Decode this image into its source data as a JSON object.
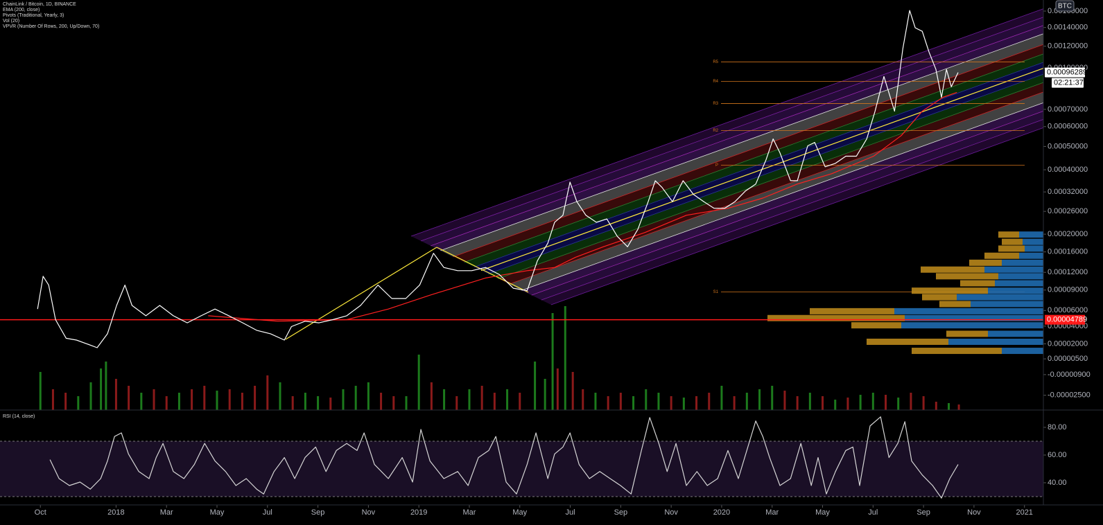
{
  "chart_data": [
    {
      "type": "line",
      "currency": "BTC",
      "xlim": [
        -1.6,
        39.75
      ],
      "xticks": [
        {
          "value": 0,
          "label": "Oct"
        },
        {
          "value": 3,
          "label": "2018"
        },
        {
          "value": 5,
          "label": "Mar"
        },
        {
          "value": 7,
          "label": "May"
        },
        {
          "value": 9,
          "label": "Jul"
        },
        {
          "value": 11,
          "label": "Sep"
        },
        {
          "value": 13,
          "label": "Nov"
        },
        {
          "value": 15,
          "label": "2019"
        },
        {
          "value": 17,
          "label": "Mar"
        },
        {
          "value": 19,
          "label": "May"
        },
        {
          "value": 21,
          "label": "Jul"
        },
        {
          "value": 23,
          "label": "Sep"
        },
        {
          "value": 25,
          "label": "Nov"
        },
        {
          "value": 27,
          "label": "2020"
        },
        {
          "value": 29,
          "label": "Mar"
        },
        {
          "value": 31,
          "label": "May"
        },
        {
          "value": 33,
          "label": "Jul"
        },
        {
          "value": 35,
          "label": "Sep"
        },
        {
          "value": 37,
          "label": "Nov"
        },
        {
          "value": 39,
          "label": "2021"
        }
      ],
      "ylim": [
        -3.5e-05,
        0.00175
      ],
      "yticks": [
        {
          "value": 0.0016,
          "label": "0.00160000"
        },
        {
          "value": 0.0014,
          "label": "0.00140000"
        },
        {
          "value": 0.0012,
          "label": "0.00120000"
        },
        {
          "value": 0.001,
          "label": "0.00100000"
        },
        {
          "value": 0.0007,
          "label": "0.00070000"
        },
        {
          "value": 0.0006,
          "label": "0.00060000"
        },
        {
          "value": 0.0005,
          "label": "0.00050000"
        },
        {
          "value": 0.0004,
          "label": "0.00040000"
        },
        {
          "value": 0.00032,
          "label": "0.00032000"
        },
        {
          "value": 0.00026,
          "label": "0.00026000"
        },
        {
          "value": 0.0002,
          "label": "0.00020000"
        },
        {
          "value": 0.00016,
          "label": "0.00016000"
        },
        {
          "value": 0.00012,
          "label": "0.00012000"
        },
        {
          "value": 9e-05,
          "label": "0.00009000"
        },
        {
          "value": 6e-05,
          "label": "0.00006000"
        },
        {
          "value": 4e-05,
          "label": "0.00004000"
        },
        {
          "value": 2e-05,
          "label": "0.00002000"
        },
        {
          "value": 5e-06,
          "label": "0.00000500"
        },
        {
          "value": -9e-06,
          "label": "-0.00000900"
        },
        {
          "value": -2.5e-05,
          "label": "-0.00002500"
        }
      ],
      "grid": false,
      "series": [
        {
          "name": "ChainLink / Bitcoin, 1D, BINANCE",
          "color": "#ffffff",
          "x": [
            -0.11,
            0.11,
            0.33,
            0.6,
            1.02,
            1.43,
            1.84,
            2.25,
            2.66,
            3.02,
            3.35,
            3.63,
            4.18,
            4.73,
            5.27,
            5.82,
            6.37,
            6.92,
            7.47,
            8.02,
            8.57,
            9.12,
            9.67,
            9.95,
            10.49,
            11.04,
            11.59,
            12.14,
            12.69,
            13.38,
            13.93,
            14.48,
            15.03,
            15.58,
            15.99,
            16.54,
            17.09,
            17.64,
            18.19,
            18.74,
            19.29,
            19.7,
            20.11,
            20.38,
            20.71,
            20.99,
            21.26,
            21.62,
            22.03,
            22.45,
            22.86,
            23.27,
            23.68,
            24.09,
            24.37,
            24.64,
            25.05,
            25.47,
            25.88,
            26.29,
            26.7,
            27.12,
            27.53,
            27.94,
            28.35,
            28.76,
            29.04,
            29.31,
            29.73,
            30.0,
            30.41,
            30.69,
            31.1,
            31.51,
            31.92,
            32.34,
            32.75,
            33.08,
            33.43,
            33.85,
            34.18,
            34.45,
            34.67,
            34.95,
            35.22,
            35.49,
            35.71,
            35.91,
            36.1,
            36.37
          ],
          "values": [
            6.2e-05,
            0.000113,
            9.8e-05,
            4.8e-05,
            2.6e-05,
            2.4e-05,
            2e-05,
            1.6e-05,
            3.1e-05,
            6.7e-05,
            9.8e-05,
            6.7e-05,
            5.3e-05,
            6.7e-05,
            5.3e-05,
            4.4e-05,
            5.3e-05,
            6.2e-05,
            5.3e-05,
            4.4e-05,
            3.5e-05,
            3.1e-05,
            2.4e-05,
            3.95e-05,
            4.6e-05,
            4.4e-05,
            4.8e-05,
            5.3e-05,
            6.7e-05,
            9.8e-05,
            7.7e-05,
            7.7e-05,
            9.8e-05,
            0.000157,
            0.000129,
            0.000123,
            0.000123,
            0.000129,
            0.000116,
            9.3e-05,
            8.9e-05,
            0.000142,
            0.000179,
            0.00023,
            0.000249,
            0.000354,
            0.000289,
            0.000249,
            0.00023,
            0.000239,
            0.000195,
            0.000171,
            0.000212,
            0.000289,
            0.000359,
            0.000335,
            0.000289,
            0.000359,
            0.000312,
            0.000289,
            0.000269,
            0.000269,
            0.000289,
            0.000323,
            0.000347,
            0.000441,
            0.000536,
            0.000471,
            0.000359,
            0.000359,
            0.000503,
            0.000519,
            0.000412,
            0.000426,
            0.000456,
            0.000456,
            0.000536,
            0.000689,
            0.000931,
            0.000689,
            0.001176,
            0.001608,
            0.001397,
            0.001357,
            0.001142,
            0.000988,
            0.000778,
            0.000988,
            0.000852,
            0.00096289
          ]
        },
        {
          "name": "EMA (200, close)",
          "color": "#ff2020",
          "x": [
            6.65,
            9.4,
            12.14,
            13.79,
            15.44,
            17.64,
            19.29,
            20.38,
            21.21,
            22.31,
            23.96,
            25.6,
            27.25,
            28.63,
            30.0,
            31.37,
            33.02,
            34.12,
            34.95,
            35.77,
            36.32
          ],
          "values": [
            5.3e-05,
            4.6e-05,
            4.8e-05,
            6.2e-05,
            8.2e-05,
            0.00011,
            0.000123,
            0.000129,
            0.000149,
            0.000171,
            0.000204,
            0.000249,
            0.000269,
            0.0003,
            0.000347,
            0.000385,
            0.000456,
            0.000553,
            0.000689,
            0.000778,
            0.000812
          ]
        }
      ],
      "last_price": 0.00096289,
      "countdown": "02:21:37",
      "hline": {
        "value": 4.789e-05,
        "color": "#ff1a1a"
      },
      "pivots": {
        "name": "Pivots (Traditional, Yearly, 3)",
        "color": "#d4761c",
        "labels": [
          "R5",
          "R4",
          "R3",
          "R2",
          "P",
          "S1"
        ],
        "values": [
          0.001053,
          0.000893,
          0.000737,
          0.000579,
          0.000418,
          8.7e-05
        ]
      },
      "volume": {
        "name": "Vol (20)",
        "up_color": "#1c7a1c",
        "down_color": "#8a1a1a",
        "x": [
          0,
          0.5,
          1,
          1.5,
          2,
          2.4,
          2.6,
          3,
          3.5,
          4,
          4.5,
          5,
          5.5,
          6,
          6.5,
          7,
          7.5,
          8,
          8.5,
          9,
          9.5,
          10,
          10.5,
          11,
          11.5,
          12,
          12.5,
          13,
          13.5,
          14,
          14.5,
          15,
          15.5,
          16,
          16.5,
          17,
          17.5,
          18,
          18.5,
          19,
          19.6,
          20,
          20.3,
          20.5,
          20.8,
          21.1,
          21.5,
          22,
          22.5,
          23,
          23.5,
          24,
          24.5,
          25,
          25.5,
          26,
          26.5,
          27,
          27.5,
          28,
          28.5,
          29,
          29.5,
          30,
          30.5,
          31,
          31.5,
          32,
          32.5,
          33,
          33.5,
          34,
          34.5,
          35,
          35.5,
          36,
          36.4
        ],
        "values": [
          55,
          30,
          25,
          20,
          40,
          60,
          70,
          45,
          35,
          25,
          30,
          20,
          25,
          30,
          35,
          28,
          30,
          25,
          35,
          50,
          40,
          20,
          25,
          20,
          18,
          30,
          35,
          40,
          25,
          20,
          20,
          80,
          40,
          30,
          20,
          30,
          35,
          25,
          30,
          25,
          70,
          45,
          140,
          60,
          150,
          55,
          30,
          25,
          20,
          25,
          20,
          30,
          25,
          20,
          18,
          20,
          25,
          35,
          20,
          25,
          30,
          35,
          28,
          20,
          25,
          20,
          15,
          18,
          22,
          25,
          22,
          18,
          25,
          20,
          12,
          10,
          8
        ],
        "up": [
          true,
          false,
          false,
          true,
          true,
          true,
          true,
          false,
          false,
          true,
          false,
          false,
          true,
          false,
          false,
          true,
          false,
          false,
          false,
          false,
          true,
          false,
          true,
          true,
          false,
          true,
          true,
          true,
          false,
          false,
          true,
          true,
          false,
          true,
          false,
          true,
          false,
          false,
          true,
          false,
          true,
          true,
          true,
          false,
          true,
          false,
          false,
          true,
          false,
          false,
          true,
          true,
          true,
          false,
          true,
          false,
          false,
          true,
          false,
          true,
          true,
          true,
          false,
          false,
          true,
          false,
          true,
          false,
          true,
          true,
          false,
          true,
          false,
          false,
          false,
          true,
          false
        ]
      },
      "volume_profile": {
        "name": "VPVR (Number Of Rows, 200, Up/Down, 70)",
        "up_color": "#1f6cb0",
        "down_color": "#b8861b",
        "prices": [
          1.28e-05,
          2.22e-05,
          3.1e-05,
          4.1e-05,
          5e-05,
          5.9e-05,
          6.9e-05,
          7.9e-05,
          8.9e-05,
          0.000101,
          0.000113,
          0.000125,
          0.000138,
          0.000152,
          0.000167,
          0.000182,
          0.000199
        ],
        "up": [
          60,
          137,
          80,
          205,
          200,
          215,
          105,
          125,
          80,
          70,
          65,
          85,
          60,
          35,
          27,
          30,
          35
        ],
        "down": [
          130,
          118,
          60,
          72,
          198,
          122,
          45,
          50,
          110,
          50,
          90,
          92,
          47,
          50,
          38,
          30,
          30
        ]
      }
    },
    {
      "type": "line",
      "xlim": [
        -1.6,
        39.75
      ],
      "ylim": [
        24,
        91
      ],
      "yticks": [
        {
          "value": 80,
          "label": "80.00"
        },
        {
          "value": 60,
          "label": "60.00"
        },
        {
          "value": 40,
          "label": "40.00"
        }
      ],
      "bands": [
        30,
        70
      ],
      "series": [
        {
          "name": "RSI (14, close)",
          "color": "#d6d6d6",
          "x": [
            0.38,
            0.74,
            1.15,
            1.57,
            1.98,
            2.39,
            2.66,
            2.94,
            3.21,
            3.49,
            3.9,
            4.31,
            4.59,
            4.86,
            5.27,
            5.69,
            6.1,
            6.51,
            6.92,
            7.34,
            7.75,
            8.16,
            8.57,
            8.85,
            9.26,
            9.67,
            10.08,
            10.49,
            10.91,
            11.32,
            11.73,
            12.14,
            12.55,
            12.83,
            13.24,
            13.79,
            14.34,
            14.75,
            15.08,
            15.44,
            15.99,
            16.54,
            16.95,
            17.36,
            17.77,
            18.05,
            18.46,
            18.87,
            19.29,
            19.64,
            20.11,
            20.38,
            20.71,
            20.99,
            21.35,
            21.76,
            22.17,
            22.58,
            22.99,
            23.41,
            23.82,
            24.15,
            24.51,
            24.84,
            25.19,
            25.6,
            26.02,
            26.43,
            26.84,
            27.25,
            27.66,
            28.08,
            28.35,
            28.63,
            28.9,
            29.31,
            29.73,
            30.14,
            30.55,
            30.82,
            31.15,
            31.51,
            31.92,
            32.2,
            32.47,
            32.88,
            33.3,
            33.63,
            33.98,
            34.26,
            34.53,
            34.95,
            35.36,
            35.71,
            36.04,
            36.37
          ],
          "values": [
            56.7,
            43.0,
            38.0,
            40.5,
            35.4,
            43.0,
            55.7,
            73.4,
            76.0,
            60.8,
            48.1,
            43.0,
            58.2,
            68.4,
            48.1,
            43.0,
            53.2,
            68.4,
            55.7,
            48.1,
            38.0,
            43.0,
            35.4,
            31.9,
            48.1,
            58.2,
            43.0,
            58.2,
            65.8,
            48.1,
            63.3,
            68.4,
            63.3,
            76.0,
            53.2,
            43.0,
            58.2,
            40.5,
            78.5,
            55.7,
            43.0,
            48.1,
            38.0,
            58.2,
            63.3,
            73.4,
            40.5,
            31.9,
            53.2,
            76.0,
            43.0,
            60.8,
            65.8,
            76.0,
            53.2,
            43.0,
            48.1,
            43.0,
            38.0,
            31.9,
            63.3,
            87.1,
            68.4,
            48.1,
            68.4,
            38.0,
            48.1,
            38.0,
            43.0,
            63.3,
            43.0,
            68.4,
            84.6,
            73.4,
            58.2,
            38.0,
            43.0,
            68.4,
            38.0,
            58.2,
            31.9,
            48.1,
            63.3,
            65.8,
            38.0,
            81.0,
            87.6,
            58.2,
            68.4,
            84.1,
            55.7,
            45.6,
            38.0,
            28.9,
            43.0,
            53.2
          ]
        }
      ]
    }
  ]
}
